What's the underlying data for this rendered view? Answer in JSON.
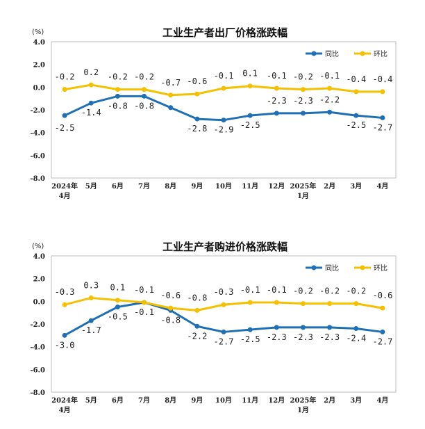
{
  "chart_data": [
    {
      "type": "line",
      "title": "工业生产者出厂价格涨跌幅",
      "unit": "(%)",
      "categories": [
        "2024年\n4月",
        "5月",
        "6月",
        "7月",
        "8月",
        "9月",
        "10月",
        "11月",
        "12月",
        "2025年\n1月",
        "2月",
        "3月",
        "4月"
      ],
      "ylim": [
        -8.0,
        4.0
      ],
      "yticks": [
        "4.0",
        "2.0",
        "0.0",
        "-2.0",
        "-4.0",
        "-6.0",
        "-8.0"
      ],
      "legend_position": "top-right",
      "series": [
        {
          "name": "同比",
          "color": "#1f6fb5",
          "values": [
            -2.5,
            -1.4,
            -0.8,
            -0.8,
            -1.8,
            -2.8,
            -2.9,
            -2.5,
            -2.3,
            -2.3,
            -2.2,
            -2.5,
            -2.7
          ],
          "labels": [
            "-2.5",
            "-1.4",
            "-0.8",
            "-0.8",
            "",
            "-2.8",
            "-2.9",
            "-2.5",
            "-2.3",
            "-2.3",
            "-2.2",
            "-2.5",
            "-2.7"
          ]
        },
        {
          "name": "环比",
          "color": "#f5c000",
          "values": [
            -0.2,
            0.2,
            -0.2,
            -0.2,
            -0.7,
            -0.6,
            -0.1,
            0.1,
            -0.1,
            -0.2,
            -0.1,
            -0.4,
            -0.4
          ],
          "labels": [
            "-0.2",
            "0.2",
            "-0.2",
            "-0.2",
            "-0.7",
            "-0.6",
            "-0.1",
            "0.1",
            "-0.1",
            "-0.2",
            "-0.1",
            "-0.4",
            "-0.4"
          ]
        }
      ]
    },
    {
      "type": "line",
      "title": "工业生产者购进价格涨跌幅",
      "unit": "(%)",
      "categories": [
        "2024年\n4月",
        "5月",
        "6月",
        "7月",
        "8月",
        "9月",
        "10月",
        "11月",
        "12月",
        "2025年\n1月",
        "2月",
        "3月",
        "4月"
      ],
      "ylim": [
        -8.0,
        4.0
      ],
      "yticks": [
        "4.0",
        "2.0",
        "0.0",
        "-2.0",
        "-4.0",
        "-6.0",
        "-8.0"
      ],
      "legend_position": "top-right",
      "series": [
        {
          "name": "同比",
          "color": "#1f6fb5",
          "values": [
            -3.0,
            -1.7,
            -0.5,
            -0.1,
            -0.8,
            -2.2,
            -2.7,
            -2.5,
            -2.3,
            -2.3,
            -2.3,
            -2.4,
            -2.7
          ],
          "labels": [
            "-3.0",
            "-1.7",
            "-0.5",
            "-0.1",
            "-0.8",
            "-2.2",
            "-2.7",
            "-2.5",
            "-2.3",
            "-2.3",
            "-2.3",
            "-2.4",
            "-2.7"
          ]
        },
        {
          "name": "环比",
          "color": "#f5c000",
          "values": [
            -0.3,
            0.3,
            0.1,
            -0.1,
            -0.6,
            -0.8,
            -0.3,
            -0.1,
            -0.1,
            -0.2,
            -0.2,
            -0.2,
            -0.6
          ],
          "labels": [
            "-0.3",
            "0.3",
            "0.1",
            "-0.1",
            "-0.6",
            "-0.8",
            "-0.3",
            "-0.1",
            "-0.1",
            "-0.2",
            "-0.2",
            "-0.2",
            "-0.6"
          ]
        }
      ]
    }
  ]
}
